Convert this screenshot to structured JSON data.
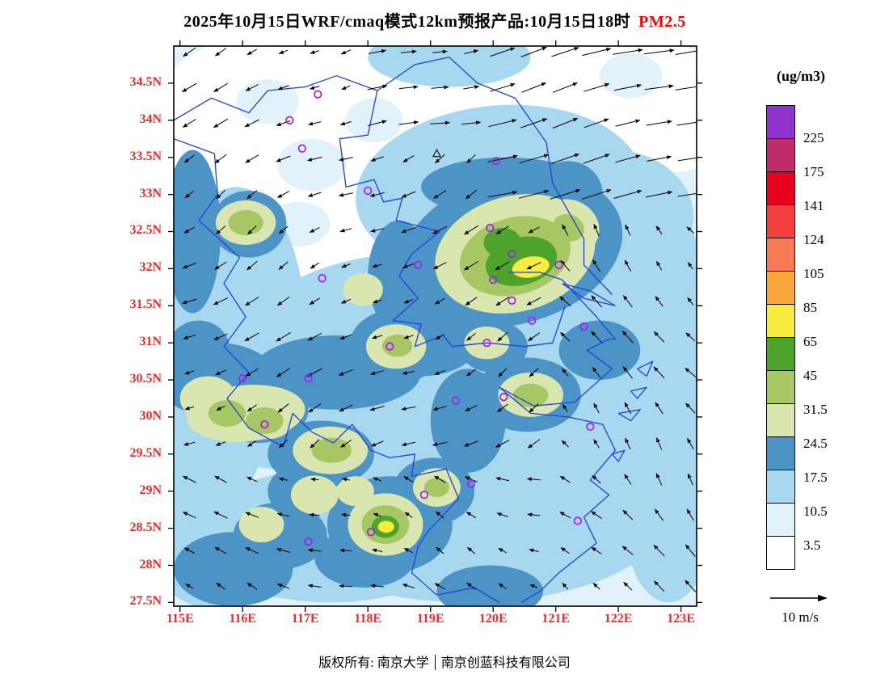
{
  "title": {
    "main": "2025年10月15日WRF/cmaq模式12km预报产品:10月15日18时",
    "species": "PM2.5"
  },
  "footer": {
    "owner": "版权所有: 南京大学",
    "company": "南京创蓝科技有限公司"
  },
  "colorbar": {
    "units": "(ug/m3)",
    "tick_labels_top_to_bottom": [
      "225",
      "175",
      "141",
      "124",
      "105",
      "85",
      "65",
      "45",
      "31.5",
      "24.5",
      "17.5",
      "10.5",
      "3.5"
    ],
    "cell_colors_low_to_high": [
      "#FFFFFF",
      "#E2F2FB",
      "#A8D8F0",
      "#4D94C6",
      "#DAE6B0",
      "#A6C763",
      "#4EA32D",
      "#F7EC3F",
      "#F9A63A",
      "#F87A55",
      "#F5413E",
      "#E8001F",
      "#BE2C6A",
      "#9033CE"
    ]
  },
  "wind": {
    "reference_label": "10 m/s"
  },
  "colors": {
    "axis_label_red": "#EE2C2C",
    "species_red": "#FF0000",
    "boundary_blue": "#2040DD",
    "marker_purple": "#A020F0"
  },
  "axes": {
    "lat_ticks": [
      {
        "t": "34.5N",
        "v": 34.5
      },
      {
        "t": "34N",
        "v": 34
      },
      {
        "t": "33.5N",
        "v": 33.5
      },
      {
        "t": "33N",
        "v": 33
      },
      {
        "t": "32.5N",
        "v": 32.5
      },
      {
        "t": "32N",
        "v": 32
      },
      {
        "t": "31.5N",
        "v": 31.5
      },
      {
        "t": "31N",
        "v": 31
      },
      {
        "t": "30.5N",
        "v": 30.5
      },
      {
        "t": "30N",
        "v": 30
      },
      {
        "t": "29.5N",
        "v": 29.5
      },
      {
        "t": "29N",
        "v": 29
      },
      {
        "t": "28.5N",
        "v": 28.5
      },
      {
        "t": "28N",
        "v": 28
      },
      {
        "t": "27.5N",
        "v": 27.5
      }
    ],
    "lon_ticks": [
      {
        "t": "115E",
        "v": 115
      },
      {
        "t": "116E",
        "v": 116
      },
      {
        "t": "117E",
        "v": 117
      },
      {
        "t": "118E",
        "v": 118
      },
      {
        "t": "119E",
        "v": 119
      },
      {
        "t": "120E",
        "v": 120
      },
      {
        "t": "121E",
        "v": 121
      },
      {
        "t": "122E",
        "v": 122
      },
      {
        "t": "123E",
        "v": 123
      }
    ]
  },
  "map": {
    "lon_view": [
      114.9,
      123.25
    ],
    "lat_view": [
      27.45,
      35.0
    ],
    "base_level": 1,
    "blobs": [
      [
        116.6,
        33.9,
        2.3,
        1.35,
        -8,
        0
      ],
      [
        117.6,
        34.62,
        2.2,
        0.75,
        0,
        0
      ],
      [
        116.2,
        32.95,
        1.7,
        0.95,
        10,
        0
      ],
      [
        118.35,
        33.6,
        1.5,
        1.05,
        0,
        0
      ],
      [
        117.6,
        32.2,
        1.3,
        0.8,
        0,
        0
      ],
      [
        118.9,
        34.25,
        1.1,
        0.65,
        0,
        0
      ],
      [
        119.85,
        34.05,
        0.8,
        0.5,
        0,
        0
      ],
      [
        121.5,
        34.55,
        1.3,
        0.7,
        0,
        0
      ],
      [
        122.45,
        34.35,
        1.1,
        0.8,
        0,
        0
      ],
      [
        122.9,
        33.9,
        0.8,
        0.6,
        0,
        0
      ],
      [
        120.9,
        34.75,
        0.9,
        0.4,
        0,
        0
      ],
      [
        118.2,
        32.75,
        0.7,
        0.45,
        0,
        0
      ],
      [
        115.4,
        33.6,
        0.8,
        0.8,
        0,
        0
      ],
      [
        122.3,
        33.1,
        0.6,
        0.45,
        0,
        0
      ],
      [
        121.9,
        33.6,
        0.7,
        0.45,
        0,
        0
      ],
      [
        116.4,
        34.25,
        0.5,
        0.3,
        0,
        1
      ],
      [
        117.1,
        33.4,
        0.55,
        0.35,
        0,
        1
      ],
      [
        116.9,
        32.6,
        0.5,
        0.3,
        0,
        1
      ],
      [
        118.1,
        34.0,
        0.45,
        0.3,
        0,
        1
      ],
      [
        122.2,
        34.6,
        0.5,
        0.3,
        0,
        1
      ],
      [
        119.3,
        34.85,
        1.3,
        0.4,
        0,
        2
      ],
      [
        120.1,
        33.05,
        2.3,
        1.15,
        -5,
        2
      ],
      [
        121.9,
        32.7,
        1.3,
        0.9,
        0,
        2
      ],
      [
        118.7,
        30.9,
        2.7,
        1.3,
        0,
        2
      ],
      [
        120.7,
        30.9,
        2.0,
        1.1,
        0,
        2
      ],
      [
        119.6,
        28.7,
        3.2,
        1.2,
        0,
        2
      ],
      [
        121.7,
        29.6,
        1.7,
        1.4,
        0,
        2
      ],
      [
        115.9,
        31.2,
        1.1,
        1.9,
        0,
        2
      ],
      [
        116.6,
        30.4,
        1.7,
        1.1,
        0,
        2
      ],
      [
        122.5,
        31.3,
        0.9,
        1.9,
        0,
        2
      ],
      [
        117.4,
        28.4,
        2.2,
        0.9,
        0,
        2
      ],
      [
        115.6,
        28.3,
        1.1,
        0.9,
        0,
        2
      ],
      [
        122.8,
        28.6,
        0.7,
        1.1,
        0,
        2
      ],
      [
        119.3,
        31.9,
        1.0,
        0.8,
        0,
        2
      ],
      [
        117.8,
        31.1,
        1.1,
        0.6,
        0,
        2
      ],
      [
        115.4,
        29.6,
        0.9,
        0.8,
        0,
        2
      ],
      [
        120.3,
        32.25,
        1.8,
        1.0,
        -15,
        3
      ],
      [
        119.55,
        31.55,
        0.95,
        0.6,
        -20,
        3
      ],
      [
        120.2,
        33.1,
        1.35,
        0.4,
        0,
        3
      ],
      [
        121.2,
        33.0,
        0.55,
        0.45,
        0,
        3
      ],
      [
        118.5,
        31.9,
        0.5,
        0.75,
        0,
        3
      ],
      [
        118.85,
        31.05,
        0.95,
        0.5,
        0,
        3
      ],
      [
        117.5,
        30.6,
        1.35,
        0.5,
        0,
        3
      ],
      [
        115.6,
        30.5,
        0.95,
        0.5,
        0,
        3
      ],
      [
        116.25,
        30.1,
        0.8,
        0.45,
        0,
        3
      ],
      [
        119.6,
        29.95,
        0.6,
        0.7,
        0,
        3
      ],
      [
        117.25,
        29.5,
        0.85,
        0.45,
        0,
        3
      ],
      [
        118.35,
        28.55,
        1.0,
        0.65,
        0,
        3
      ],
      [
        116.6,
        28.4,
        0.75,
        0.45,
        0,
        3
      ],
      [
        117.95,
        28.1,
        0.8,
        0.4,
        0,
        3
      ],
      [
        115.85,
        27.95,
        0.95,
        0.5,
        0,
        3
      ],
      [
        121.7,
        30.9,
        0.65,
        0.4,
        0,
        3
      ],
      [
        116.1,
        32.6,
        0.6,
        0.45,
        0,
        3
      ],
      [
        115.2,
        32.5,
        0.45,
        1.1,
        0,
        3
      ],
      [
        118.45,
        30.95,
        0.75,
        0.5,
        0,
        3
      ],
      [
        120.55,
        30.3,
        0.85,
        0.5,
        0,
        3
      ],
      [
        119.05,
        29.0,
        0.65,
        0.45,
        0,
        3
      ],
      [
        119.95,
        27.65,
        0.85,
        0.35,
        0,
        3
      ],
      [
        116.9,
        29.0,
        0.5,
        0.35,
        0,
        3
      ],
      [
        115.3,
        30.9,
        0.5,
        0.4,
        0,
        3
      ],
      [
        120.0,
        30.95,
        0.55,
        0.35,
        0,
        3
      ],
      [
        120.35,
        32.2,
        1.3,
        0.78,
        -15,
        4
      ],
      [
        121.2,
        32.55,
        0.5,
        0.38,
        20,
        4
      ],
      [
        116.05,
        32.62,
        0.48,
        0.3,
        0,
        4
      ],
      [
        117.92,
        31.72,
        0.32,
        0.22,
        0,
        4
      ],
      [
        116.05,
        30.05,
        0.95,
        0.38,
        -5,
        4
      ],
      [
        115.45,
        30.25,
        0.45,
        0.3,
        0,
        4
      ],
      [
        117.4,
        29.55,
        0.6,
        0.32,
        0,
        4
      ],
      [
        118.45,
        30.95,
        0.48,
        0.3,
        0,
        4
      ],
      [
        120.6,
        30.3,
        0.52,
        0.3,
        0,
        4
      ],
      [
        118.28,
        28.55,
        0.6,
        0.42,
        0,
        4
      ],
      [
        117.15,
        28.95,
        0.38,
        0.26,
        0,
        4
      ],
      [
        116.3,
        28.55,
        0.36,
        0.24,
        0,
        4
      ],
      [
        119.1,
        29.05,
        0.38,
        0.26,
        0,
        4
      ],
      [
        119.9,
        31.0,
        0.36,
        0.22,
        0,
        4
      ],
      [
        116.4,
        29.95,
        0.4,
        0.25,
        0,
        4
      ],
      [
        117.8,
        29.0,
        0.3,
        0.2,
        0,
        4
      ],
      [
        120.35,
        32.17,
        0.9,
        0.52,
        -15,
        5
      ],
      [
        116.05,
        32.62,
        0.28,
        0.17,
        0,
        5
      ],
      [
        115.75,
        30.05,
        0.3,
        0.18,
        0,
        5
      ],
      [
        116.35,
        29.95,
        0.3,
        0.18,
        0,
        5
      ],
      [
        117.42,
        29.55,
        0.32,
        0.17,
        0,
        5
      ],
      [
        118.28,
        28.55,
        0.38,
        0.26,
        0,
        5
      ],
      [
        120.6,
        30.29,
        0.28,
        0.16,
        0,
        5
      ],
      [
        118.47,
        30.96,
        0.24,
        0.15,
        0,
        5
      ],
      [
        119.1,
        29.05,
        0.2,
        0.13,
        0,
        5
      ],
      [
        121.2,
        32.55,
        0.26,
        0.18,
        20,
        5
      ],
      [
        120.45,
        32.1,
        0.58,
        0.32,
        -15,
        6
      ],
      [
        120.15,
        32.35,
        0.3,
        0.2,
        0,
        6
      ],
      [
        118.28,
        28.52,
        0.22,
        0.15,
        0,
        6
      ],
      [
        120.6,
        32.02,
        0.3,
        0.14,
        -10,
        7
      ],
      [
        118.29,
        28.52,
        0.13,
        0.08,
        0,
        7
      ]
    ],
    "station_circles": [
      [
        117.2,
        34.35
      ],
      [
        116.75,
        34.0
      ],
      [
        116.95,
        33.62
      ],
      [
        120.05,
        33.45
      ],
      [
        118.0,
        33.05
      ],
      [
        119.95,
        32.55
      ],
      [
        120.3,
        32.2
      ],
      [
        121.05,
        32.05
      ],
      [
        118.8,
        32.05
      ],
      [
        120.0,
        31.85
      ],
      [
        117.27,
        31.87
      ],
      [
        120.3,
        31.57
      ],
      [
        120.62,
        31.3
      ],
      [
        121.45,
        31.22
      ],
      [
        118.35,
        30.95
      ],
      [
        116.0,
        30.52
      ],
      [
        117.05,
        30.52
      ],
      [
        119.4,
        30.22
      ],
      [
        120.17,
        30.27
      ],
      [
        116.35,
        29.9
      ],
      [
        121.55,
        29.87
      ],
      [
        119.65,
        29.1
      ],
      [
        118.9,
        28.95
      ],
      [
        121.35,
        28.6
      ],
      [
        117.05,
        28.32
      ],
      [
        118.05,
        28.45
      ],
      [
        119.9,
        31.0
      ]
    ],
    "station_triangles": [
      [
        119.1,
        33.55
      ]
    ]
  },
  "chart_data": {
    "type": "heatmap",
    "title": "2025年10月15日WRF/cmaq模式12km预报产品:10月15日18时 PM2.5",
    "units": "ug/m3",
    "contour_levels": [
      3.5,
      10.5,
      17.5,
      24.5,
      31.5,
      45,
      65,
      85,
      105,
      124,
      141,
      175,
      225
    ],
    "lon_axis_range": [
      115,
      123
    ],
    "lat_axis_range": [
      27.5,
      34.5
    ],
    "wind_reference_m_s": 10,
    "hotspots": [
      {
        "lon": 120.5,
        "lat": 32.1,
        "range_ug_m3": "45-85"
      },
      {
        "lon": 118.3,
        "lat": 28.5,
        "range_ug_m3": "45-65"
      },
      {
        "lon": 116.05,
        "lat": 32.6,
        "range_ug_m3": "31.5-45"
      },
      {
        "lon": 116.1,
        "lat": 30.0,
        "range_ug_m3": "31.5-45"
      },
      {
        "lon": 117.4,
        "lat": 29.55,
        "range_ug_m3": "31.5-45"
      },
      {
        "lon": 120.6,
        "lat": 30.3,
        "range_ug_m3": "31.5-45"
      },
      {
        "lon": 118.45,
        "lat": 30.95,
        "range_ug_m3": "24.5-45"
      },
      {
        "lon": 119.1,
        "lat": 29.05,
        "range_ug_m3": "24.5-45"
      }
    ]
  }
}
